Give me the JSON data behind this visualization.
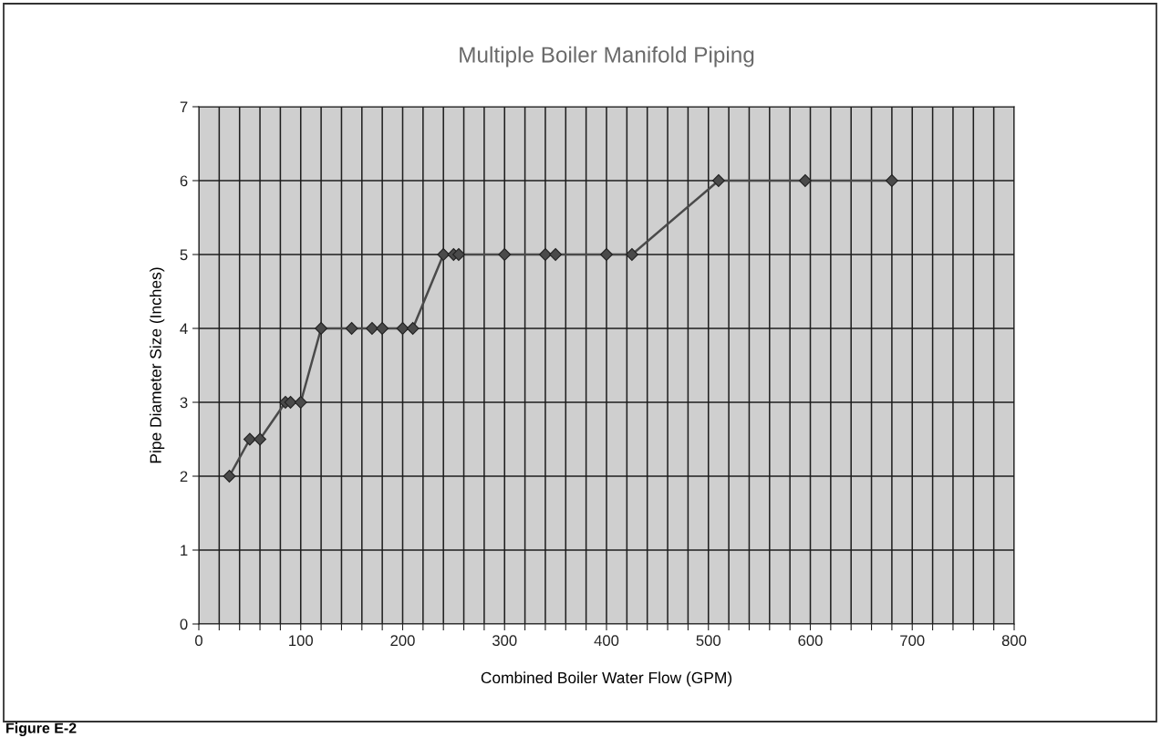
{
  "chart_data": {
    "type": "line",
    "title": "Multiple Boiler Manifold Piping",
    "xlabel": "Combined Boiler Water Flow (GPM)",
    "ylabel": "Pipe Diameter Size (Inches)",
    "annotations": [
      "Figure E-2"
    ],
    "x": [
      30,
      50,
      60,
      85,
      90,
      100,
      120,
      150,
      170,
      180,
      200,
      210,
      240,
      250,
      255,
      300,
      340,
      350,
      400,
      425,
      510,
      595,
      680
    ],
    "series": [
      {
        "color": "#4a4a4a",
        "values": [
          2,
          2.5,
          2.5,
          3,
          3,
          3,
          4,
          4,
          4,
          4,
          4,
          4,
          5,
          5,
          5,
          5,
          5,
          5,
          5,
          5,
          6,
          6,
          6
        ]
      }
    ],
    "xlim": [
      0,
      800
    ],
    "ylim": [
      0,
      7
    ],
    "xticks": [
      0,
      {
        "value": 20,
        "label": null
      },
      {
        "value": 40,
        "label": null
      },
      {
        "value": 60,
        "label": null
      },
      {
        "value": 80,
        "label": null
      },
      100,
      {
        "value": 120,
        "label": null
      },
      {
        "value": 140,
        "label": null
      },
      {
        "value": 160,
        "label": null
      },
      {
        "value": 180,
        "label": null
      },
      200,
      {
        "value": 220,
        "label": null
      },
      {
        "value": 240,
        "label": null
      },
      {
        "value": 260,
        "label": null
      },
      {
        "value": 280,
        "label": null
      },
      300,
      {
        "value": 320,
        "label": null
      },
      {
        "value": 340,
        "label": null
      },
      {
        "value": 360,
        "label": null
      },
      {
        "value": 380,
        "label": null
      },
      400,
      {
        "value": 420,
        "label": null
      },
      {
        "value": 440,
        "label": null
      },
      {
        "value": 460,
        "label": null
      },
      {
        "value": 480,
        "label": null
      },
      500,
      {
        "value": 520,
        "label": null
      },
      {
        "value": 540,
        "label": null
      },
      {
        "value": 560,
        "label": null
      },
      {
        "value": 580,
        "label": null
      },
      600,
      {
        "value": 620,
        "label": null
      },
      {
        "value": 640,
        "label": null
      },
      {
        "value": 660,
        "label": null
      },
      {
        "value": 680,
        "label": null
      },
      700,
      {
        "value": 720,
        "label": null
      },
      {
        "value": 740,
        "label": null
      },
      {
        "value": 760,
        "label": null
      },
      {
        "value": 780,
        "label": null
      },
      800
    ],
    "yticks": [
      0,
      1,
      2,
      3,
      4,
      5,
      6,
      7
    ],
    "grid": true,
    "marker": "diamond",
    "line_style": "solid"
  }
}
